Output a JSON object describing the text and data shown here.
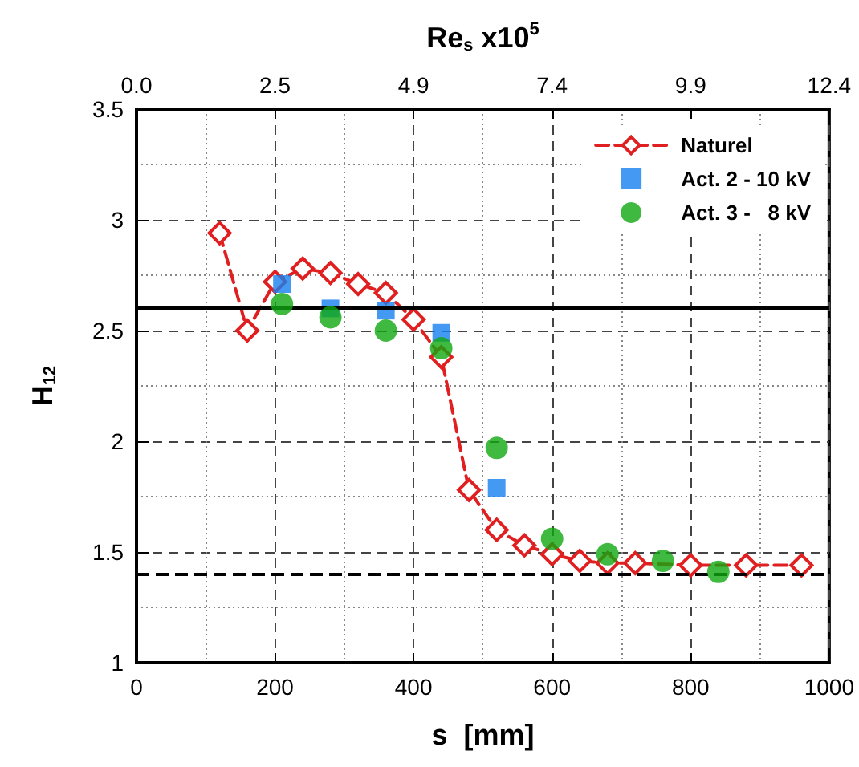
{
  "chart_data": {
    "type": "line",
    "xlabel": "s  [mm]",
    "ylabel": "H$_{12}$",
    "x2label": "Re$_{s}$ x10$^{5}$",
    "xlim": [
      0,
      1000
    ],
    "xticks": [
      0,
      200,
      400,
      600,
      800,
      1000
    ],
    "ylim": [
      1,
      3.5
    ],
    "yticks": [
      1,
      1.5,
      2,
      2.5,
      3,
      3.5
    ],
    "x2lim": [
      0,
      12.35
    ],
    "x2ticks": [
      {
        "value": 0,
        "label": "0.0"
      },
      {
        "value": 2.47,
        "label": "2.5"
      },
      {
        "value": 4.94,
        "label": "4.9"
      },
      {
        "value": 7.41,
        "label": "7.4"
      },
      {
        "value": 9.88,
        "label": "9.9"
      },
      {
        "value": 12.35,
        "label": "12.4"
      }
    ],
    "grid": true,
    "legend": "top right",
    "series": [
      {
        "name": "Naturel",
        "marker": "diamond",
        "line_style": "dashed",
        "color": "#e02020",
        "x": [
          120,
          160,
          200,
          240,
          280,
          320,
          360,
          400,
          440,
          480,
          520,
          560,
          600,
          640,
          680,
          720,
          800,
          880,
          960
        ],
        "values": [
          2.94,
          2.5,
          2.72,
          2.78,
          2.76,
          2.71,
          2.67,
          2.55,
          2.38,
          1.78,
          1.6,
          1.53,
          1.49,
          1.46,
          1.45,
          1.45,
          1.44,
          1.44,
          1.44
        ]
      },
      {
        "name": "Act. 2 - 10 kV",
        "type": "scatter",
        "marker": "square",
        "color": "#1580f0",
        "x": [
          210,
          280,
          360,
          440,
          520
        ],
        "values": [
          2.71,
          2.6,
          2.59,
          2.49,
          1.79
        ]
      },
      {
        "name": "Act. 3 -   8 kV",
        "type": "scatter",
        "marker": "circle",
        "color": "#10a810",
        "x": [
          210,
          280,
          360,
          440,
          520,
          600,
          680,
          760,
          840
        ],
        "values": [
          2.62,
          2.56,
          2.5,
          2.42,
          1.97,
          1.56,
          1.49,
          1.46,
          1.41
        ]
      }
    ],
    "ref_lines": [
      {
        "axis": "y",
        "value": 2.6,
        "color": "#000000",
        "line_style": "solid"
      },
      {
        "axis": "y",
        "value": 1.4,
        "color": "#000000",
        "line_style": "dashed"
      }
    ]
  }
}
